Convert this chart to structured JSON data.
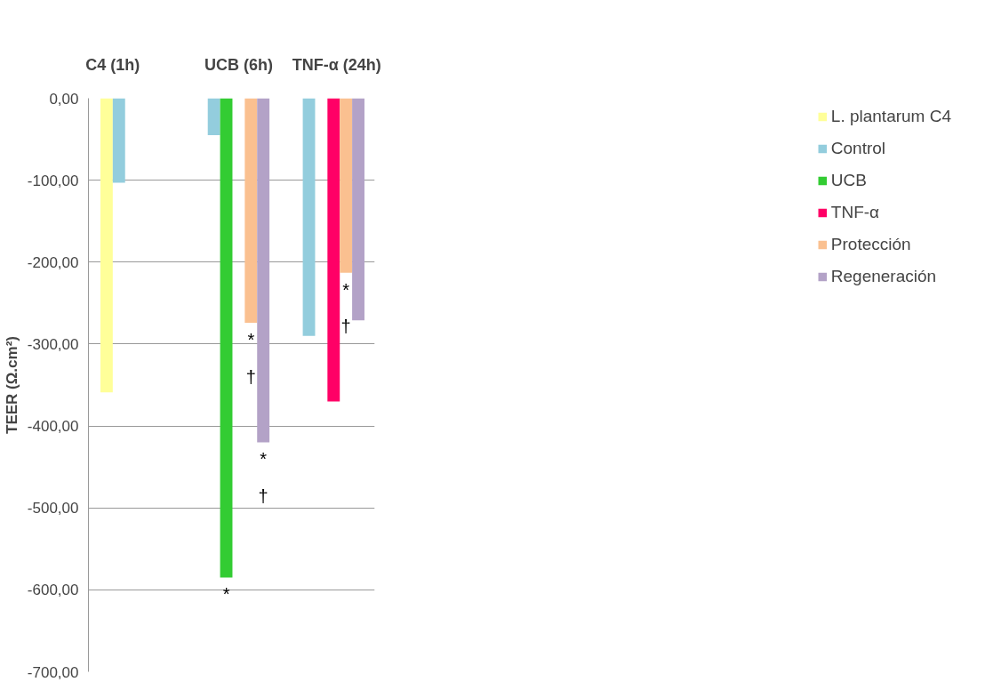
{
  "chart_data": {
    "type": "bar",
    "ylabel": "TEER (Ω.cm²)",
    "categories": [
      "C4 (1h)",
      "UCB (6h)",
      "TNF-α (24h)"
    ],
    "series": [
      {
        "name": "L. plantarum C4",
        "color": "#ffff99",
        "values": [
          -359,
          null,
          null
        ]
      },
      {
        "name": "Control",
        "color": "#93cddd",
        "values": [
          -103,
          -45,
          -290
        ]
      },
      {
        "name": "UCB",
        "color": "#33cc33",
        "values": [
          null,
          -585,
          null
        ],
        "value_labels": [
          null,
          "*",
          null
        ]
      },
      {
        "name": "TNF-α",
        "color": "#ff0066",
        "values": [
          null,
          null,
          -370
        ]
      },
      {
        "name": "Protección",
        "color": "#fac090",
        "values": [
          null,
          -274,
          -213
        ],
        "value_labels": [
          null,
          "*\n†",
          "*\n†"
        ]
      },
      {
        "name": "Regeneración",
        "color": "#b3a2c7",
        "values": [
          null,
          -420,
          -271
        ],
        "value_labels": [
          null,
          "*\n†",
          null
        ]
      }
    ],
    "ylim": [
      -700,
      0
    ],
    "yticks": [
      {
        "value": 0,
        "label": "0,00"
      },
      {
        "value": -100,
        "label": "-100,00"
      },
      {
        "value": -200,
        "label": "-200,00"
      },
      {
        "value": -300,
        "label": "-300,00"
      },
      {
        "value": -400,
        "label": "-400,00"
      },
      {
        "value": -500,
        "label": "-500,00"
      },
      {
        "value": -600,
        "label": "-600,00"
      },
      {
        "value": -700,
        "label": "-700,00"
      }
    ],
    "grid": "y",
    "legend": "right"
  }
}
